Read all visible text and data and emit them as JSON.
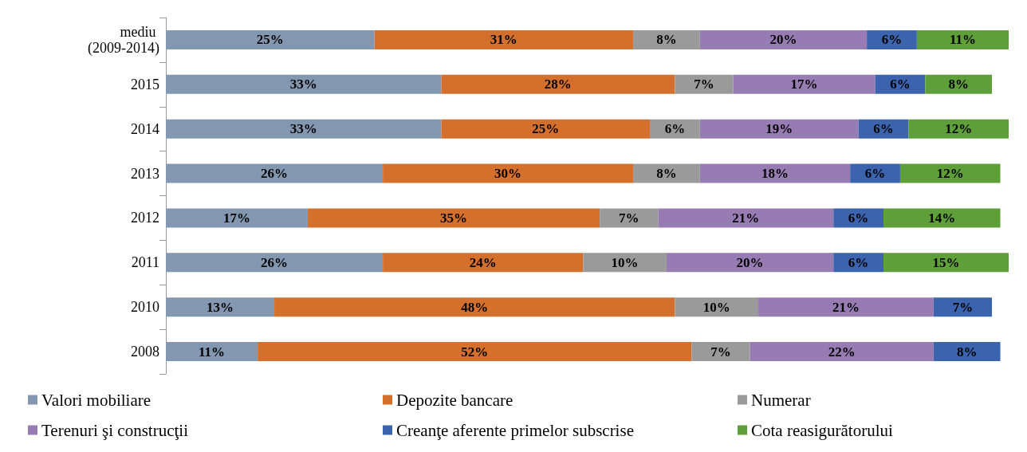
{
  "chart_data": {
    "type": "bar",
    "orientation": "horizontal",
    "stacked": true,
    "legend": "bottom",
    "grid": false,
    "categories": [
      "mediu (2009-2014)",
      "2015",
      "2014",
      "2013",
      "2012",
      "2011",
      "2010",
      "2008"
    ],
    "series": [
      {
        "name": "Valori mobiliare",
        "color": "#8497b0",
        "values": [
          25,
          33,
          33,
          26,
          17,
          26,
          13,
          11
        ],
        "value_labels": [
          "25%",
          "33%",
          "33%",
          "26%",
          "17%",
          "26%",
          "13%",
          "11%"
        ]
      },
      {
        "name": "Depozite bancare",
        "color": "#d5702c",
        "values": [
          31,
          28,
          25,
          30,
          35,
          24,
          48,
          52
        ],
        "value_labels": [
          "31%",
          "28%",
          "25%",
          "30%",
          "35%",
          "24%",
          "48%",
          "52%"
        ]
      },
      {
        "name": "Numerar",
        "color": "#9a9a9a",
        "values": [
          8,
          7,
          6,
          8,
          7,
          10,
          10,
          7
        ],
        "value_labels": [
          "8%",
          "7%",
          "6%",
          "8%",
          "7%",
          "10%",
          "10%",
          "7%"
        ]
      },
      {
        "name": "Terenuri şi construcţii",
        "color": "#977cb4",
        "values": [
          20,
          17,
          19,
          18,
          21,
          20,
          21,
          22
        ],
        "value_labels": [
          "20%",
          "17%",
          "19%",
          "18%",
          "21%",
          "20%",
          "21%",
          "22%"
        ]
      },
      {
        "name": "Creanţe aferente primelor subscrise",
        "color": "#3c64ae",
        "values": [
          6,
          6,
          6,
          6,
          6,
          6,
          7,
          8
        ],
        "value_labels": [
          "6%",
          "6%",
          "6%",
          "6%",
          "6%",
          "6%",
          "7%",
          "8%"
        ]
      },
      {
        "name": "Cota reasigurătorului",
        "color": "#5f9f3a",
        "values": [
          11,
          8,
          12,
          12,
          14,
          15,
          null,
          null
        ],
        "value_labels": [
          "11%",
          "8%",
          "12%",
          "12%",
          "14%",
          "15%",
          null,
          null
        ]
      }
    ]
  }
}
